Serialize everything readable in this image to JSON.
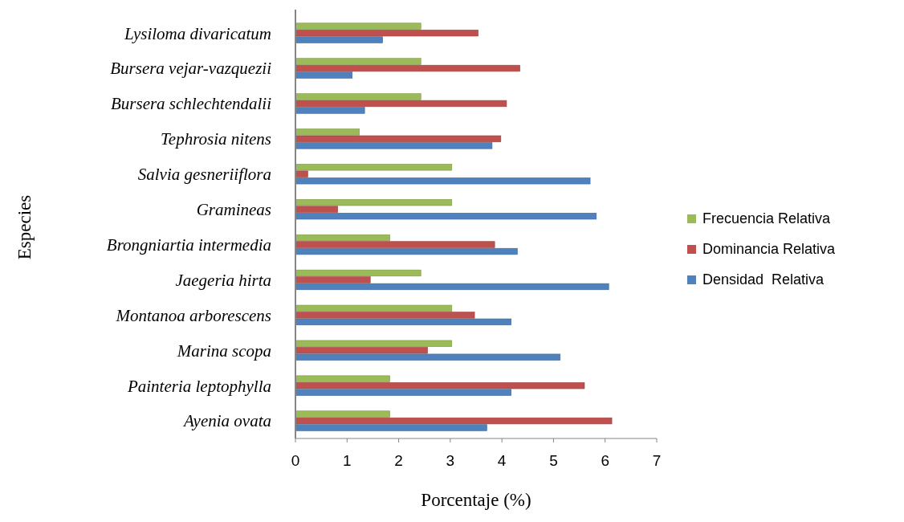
{
  "chart_data": {
    "type": "bar",
    "orientation": "horizontal",
    "xlabel": "Porcentaje (%)",
    "ylabel": "Especies",
    "categories": [
      "Lysiloma divaricatum",
      "Bursera vejar-vazquezii",
      "Bursera schlechtendalii",
      "Tephrosia nitens",
      "Salvia gesneriiflora",
      "Gramineas",
      "Brongniartia intermedia",
      "Jaegeria hirta",
      "Montanoa arborescens",
      "Marina scopa",
      "Painteria leptophylla",
      "Ayenia ovata"
    ],
    "series": [
      {
        "name": "Frecuencia Relativa",
        "color": "#9bbb59",
        "values": [
          2.43,
          2.43,
          2.43,
          1.24,
          3.03,
          3.03,
          1.83,
          2.43,
          3.03,
          3.03,
          1.83,
          1.83
        ]
      },
      {
        "name": "Dominancia Relativa",
        "color": "#c0504d",
        "values": [
          3.54,
          4.35,
          4.09,
          3.98,
          0.24,
          0.82,
          3.86,
          1.45,
          3.47,
          2.56,
          5.6,
          6.13
        ]
      },
      {
        "name": "Densidad  Relativa",
        "color": "#4f81bd",
        "values": [
          1.69,
          1.1,
          1.34,
          3.81,
          5.71,
          5.83,
          4.3,
          6.07,
          4.18,
          5.13,
          4.18,
          3.71
        ]
      }
    ],
    "xlim": [
      0,
      7
    ],
    "xticks": [
      0,
      1,
      2,
      3,
      4,
      5,
      6,
      7
    ],
    "legend": "right",
    "grid": false
  }
}
